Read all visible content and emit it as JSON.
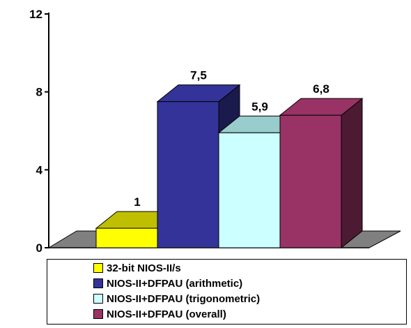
{
  "chart_data": {
    "type": "bar",
    "title": "",
    "xlabel": "",
    "ylabel": "",
    "ylim": [
      0,
      12
    ],
    "yticks": [
      0,
      4,
      8,
      12
    ],
    "grid": false,
    "three_d": true,
    "legend_position": "bottom",
    "series": [
      {
        "name": "32-bit NIOS-II/s",
        "value": 1,
        "label": "1",
        "color": "#ffff00",
        "side_color": "#7f7f00"
      },
      {
        "name": "NIOS-II+DFPAU (arithmetic)",
        "value": 7.5,
        "label": "7,5",
        "color": "#333399",
        "side_color": "#1a1a4d"
      },
      {
        "name": "NIOS-II+DFPAU (trigonometric)",
        "value": 5.9,
        "label": "5,9",
        "color": "#ccffff",
        "side_color": "#668080"
      },
      {
        "name": "NIOS-II+DFPAU (overall)",
        "value": 6.8,
        "label": "6,8",
        "color": "#993366",
        "side_color": "#4d1a33"
      }
    ],
    "floor_color": "#808080"
  }
}
